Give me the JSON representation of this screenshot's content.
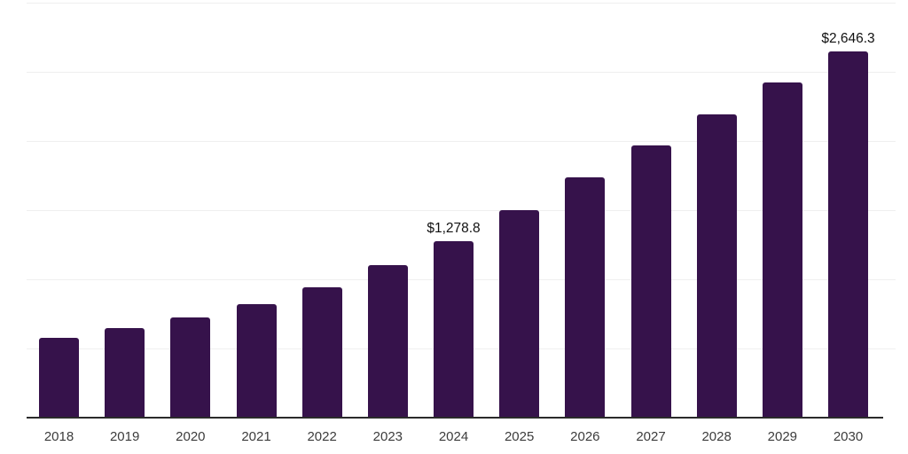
{
  "chart_data": {
    "type": "bar",
    "title": "",
    "xlabel": "",
    "ylabel": "",
    "categories": [
      "2018",
      "2019",
      "2020",
      "2021",
      "2022",
      "2023",
      "2024",
      "2025",
      "2026",
      "2027",
      "2028",
      "2029",
      "2030"
    ],
    "values": [
      575,
      645,
      725,
      820,
      945,
      1100,
      1278.8,
      1500,
      1740,
      1965,
      2195,
      2425,
      2646.3
    ],
    "value_labels": [
      "",
      "",
      "",
      "",
      "",
      "",
      "$1,278.8",
      "",
      "",
      "",
      "",
      "",
      "$2,646.3"
    ],
    "ylim": [
      0,
      3000
    ],
    "grid_step": 500,
    "grid": true,
    "y_tick_labels_visible": false,
    "legend": "none",
    "colors": {
      "bar": "#36124B",
      "axis_line": "#2B2B2B",
      "gridline": "#EFEFEF",
      "value_label": "#111111",
      "tick_label": "#3C3C3C",
      "background": "#FFFFFF"
    }
  }
}
